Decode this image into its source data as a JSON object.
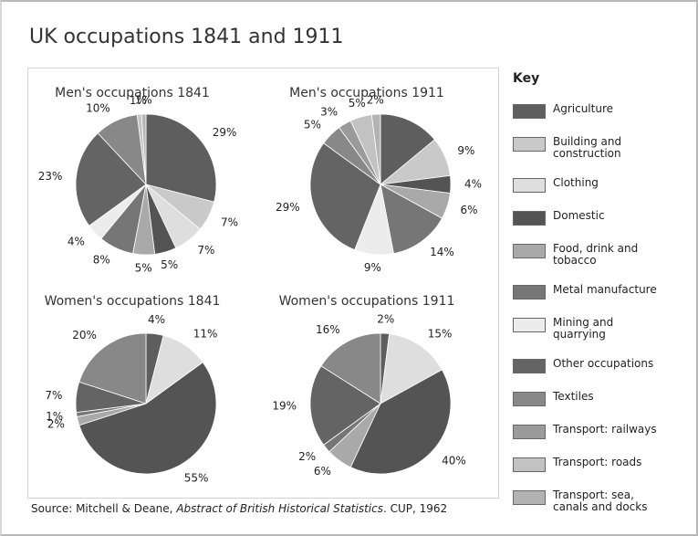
{
  "title": "UK occupations 1841 and 1911",
  "source": {
    "prefix": "Source: Mitchell & Deane, ",
    "italic": "Abstract of British Historical Statistics",
    "suffix": ". CUP, 1962"
  },
  "legend": {
    "title": "Key",
    "items": [
      {
        "name": "Agriculture",
        "color": "#5e5e5e"
      },
      {
        "name": "Building and construction",
        "color": "#c9c9c9"
      },
      {
        "name": "Clothing",
        "color": "#dedede"
      },
      {
        "name": "Domestic",
        "color": "#545454"
      },
      {
        "name": "Food, drink and tobacco",
        "color": "#a9a9a9"
      },
      {
        "name": "Metal manufacture",
        "color": "#767676"
      },
      {
        "name": "Mining and quarrying",
        "color": "#ececec"
      },
      {
        "name": "Other occupations",
        "color": "#646464"
      },
      {
        "name": "Textiles",
        "color": "#888888"
      },
      {
        "name": "Transport: railways",
        "color": "#9a9a9a"
      },
      {
        "name": "Transport: roads",
        "color": "#c2c2c2"
      },
      {
        "name": "Transport: sea, canals and docks",
        "color": "#b3b3b3"
      }
    ]
  },
  "chart_data": [
    {
      "type": "pie",
      "title": "Men's occupations 1841",
      "categories": [
        "Agriculture",
        "Building and construction",
        "Clothing",
        "Domestic",
        "Food, drink and tobacco",
        "Metal manufacture",
        "Mining and quarrying",
        "Other occupations",
        "Textiles",
        "Transport: roads",
        "Transport: sea, canals and docks"
      ],
      "values": [
        29,
        7,
        7,
        5,
        5,
        8,
        4,
        23,
        10,
        1,
        1
      ],
      "value_labels": [
        "29%",
        "7%",
        "7%",
        "5%",
        "5%",
        "8%",
        "4%",
        "23%",
        "10%",
        "1%",
        "1%"
      ]
    },
    {
      "type": "pie",
      "title": "Men's occupations 1911",
      "categories": [
        "Agriculture",
        "Building and construction",
        "Domestic",
        "Food, drink and tobacco",
        "Metal manufacture",
        "Mining and quarrying",
        "Other occupations",
        "Textiles",
        "Transport: railways",
        "Transport: roads",
        "Transport: sea, canals and docks"
      ],
      "values": [
        14,
        9,
        4,
        6,
        14,
        9,
        29,
        5,
        3,
        5,
        2
      ],
      "value_labels": [
        null,
        "9%",
        "4%",
        "6%",
        "14%",
        "9%",
        "29%",
        "5%",
        "3%",
        "5%",
        "2%"
      ]
    },
    {
      "type": "pie",
      "title": "Women's occupations 1841",
      "categories": [
        "Agriculture",
        "Clothing",
        "Domestic",
        "Food, drink and tobacco",
        "Metal manufacture",
        "Other occupations",
        "Textiles"
      ],
      "values": [
        4,
        11,
        55,
        2,
        1,
        7,
        20
      ],
      "value_labels": [
        "4%",
        "11%",
        "55%",
        "2%",
        "1%",
        "7%",
        "20%"
      ]
    },
    {
      "type": "pie",
      "title": "Women's occupations 1911",
      "categories": [
        "Agriculture",
        "Clothing",
        "Domestic",
        "Food, drink and tobacco",
        "Metal manufacture",
        "Other occupations",
        "Textiles"
      ],
      "values": [
        2,
        15,
        40,
        6,
        2,
        19,
        16
      ],
      "value_labels": [
        "2%",
        "15%",
        "40%",
        "6%",
        "2%",
        "19%",
        "16%"
      ]
    }
  ]
}
